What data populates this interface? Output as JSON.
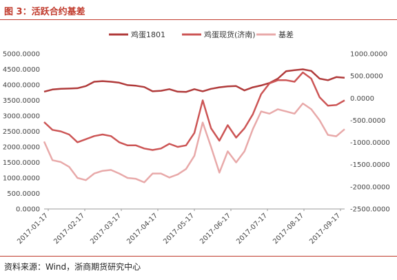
{
  "figure_title": "图 3：活跃合约基差",
  "source_note": "资料来源：Wind，浙商期货研究中心",
  "colors": {
    "futures": "#b03a3a",
    "spot": "#cc5555",
    "basis": "#e8a9a9",
    "accent": "#c0392b"
  },
  "chart_data": {
    "type": "line",
    "title": "",
    "legend_position": "top",
    "grid": false,
    "x_ticks": [
      "2017-01-17",
      "2017-02-17",
      "2017-03-17",
      "2017-04-17",
      "2017-05-17",
      "2017-06-17",
      "2017-07-17",
      "2017-08-17",
      "2017-09-17"
    ],
    "x_range": [
      0,
      36
    ],
    "y_left": {
      "range": [
        0,
        5000
      ],
      "ticks": [
        "0.0000",
        "500.0000",
        "1000.0000",
        "1500.0000",
        "2000.0000",
        "2500.0000",
        "3000.0000",
        "3500.0000",
        "4000.0000",
        "4500.0000",
        "5000.0000"
      ]
    },
    "y_right": {
      "range": [
        -2500,
        1000
      ],
      "ticks": [
        "-2500.0000",
        "-2000.0000",
        "-1500.0000",
        "-1000.0000",
        "-500.0000",
        "0.0000",
        "500.0000",
        "1000.0000"
      ]
    },
    "series": [
      {
        "name": "鸡蛋1801",
        "axis": "left",
        "color_key": "futures",
        "points": [
          [
            0,
            3780
          ],
          [
            1,
            3850
          ],
          [
            2,
            3870
          ],
          [
            3,
            3880
          ],
          [
            4,
            3890
          ],
          [
            5,
            3960
          ],
          [
            6,
            4100
          ],
          [
            7,
            4120
          ],
          [
            8,
            4100
          ],
          [
            9,
            4070
          ],
          [
            10,
            3990
          ],
          [
            11,
            3970
          ],
          [
            12,
            3930
          ],
          [
            13,
            3790
          ],
          [
            14,
            3810
          ],
          [
            15,
            3860
          ],
          [
            16,
            3780
          ],
          [
            17,
            3770
          ],
          [
            18,
            3860
          ],
          [
            19,
            3790
          ],
          [
            20,
            3870
          ],
          [
            21,
            3920
          ],
          [
            22,
            3950
          ],
          [
            23,
            3960
          ],
          [
            24,
            3820
          ],
          [
            25,
            3920
          ],
          [
            26,
            3980
          ],
          [
            27,
            4060
          ],
          [
            28,
            4200
          ],
          [
            29,
            4440
          ],
          [
            30,
            4470
          ],
          [
            31,
            4500
          ],
          [
            32,
            4450
          ],
          [
            33,
            4200
          ],
          [
            34,
            4150
          ],
          [
            35,
            4250
          ],
          [
            36,
            4230
          ]
        ]
      },
      {
        "name": "鸡蛋现货(济南)",
        "axis": "left",
        "color_key": "spot",
        "points": [
          [
            0,
            2800
          ],
          [
            1,
            2550
          ],
          [
            2,
            2500
          ],
          [
            3,
            2400
          ],
          [
            4,
            2150
          ],
          [
            5,
            2250
          ],
          [
            6,
            2350
          ],
          [
            7,
            2400
          ],
          [
            8,
            2350
          ],
          [
            9,
            2150
          ],
          [
            10,
            2050
          ],
          [
            11,
            2050
          ],
          [
            12,
            1950
          ],
          [
            13,
            1900
          ],
          [
            14,
            1950
          ],
          [
            15,
            2100
          ],
          [
            16,
            2000
          ],
          [
            17,
            2050
          ],
          [
            18,
            2450
          ],
          [
            19,
            3500
          ],
          [
            20,
            2600
          ],
          [
            21,
            2200
          ],
          [
            22,
            2700
          ],
          [
            23,
            2300
          ],
          [
            24,
            2600
          ],
          [
            25,
            3050
          ],
          [
            26,
            3700
          ],
          [
            27,
            4050
          ],
          [
            28,
            4150
          ],
          [
            29,
            4150
          ],
          [
            30,
            4100
          ],
          [
            31,
            4400
          ],
          [
            32,
            4200
          ],
          [
            33,
            3600
          ],
          [
            34,
            3330
          ],
          [
            35,
            3350
          ],
          [
            36,
            3500
          ]
        ]
      },
      {
        "name": "基差",
        "axis": "right",
        "color_key": "basis",
        "points": [
          [
            0,
            -980
          ],
          [
            1,
            -1400
          ],
          [
            2,
            -1440
          ],
          [
            3,
            -1550
          ],
          [
            4,
            -1800
          ],
          [
            5,
            -1850
          ],
          [
            6,
            -1700
          ],
          [
            7,
            -1640
          ],
          [
            8,
            -1620
          ],
          [
            9,
            -1700
          ],
          [
            10,
            -1800
          ],
          [
            11,
            -1820
          ],
          [
            12,
            -1900
          ],
          [
            13,
            -1700
          ],
          [
            14,
            -1700
          ],
          [
            15,
            -1790
          ],
          [
            16,
            -1720
          ],
          [
            17,
            -1600
          ],
          [
            18,
            -1300
          ],
          [
            19,
            -550
          ],
          [
            20,
            -1100
          ],
          [
            21,
            -1680
          ],
          [
            22,
            -1200
          ],
          [
            23,
            -1450
          ],
          [
            24,
            -1200
          ],
          [
            25,
            -700
          ],
          [
            26,
            -300
          ],
          [
            27,
            -350
          ],
          [
            28,
            -250
          ],
          [
            29,
            -300
          ],
          [
            30,
            -350
          ],
          [
            31,
            -120
          ],
          [
            32,
            -250
          ],
          [
            33,
            -500
          ],
          [
            34,
            -830
          ],
          [
            35,
            -860
          ],
          [
            36,
            -700
          ]
        ]
      }
    ]
  }
}
